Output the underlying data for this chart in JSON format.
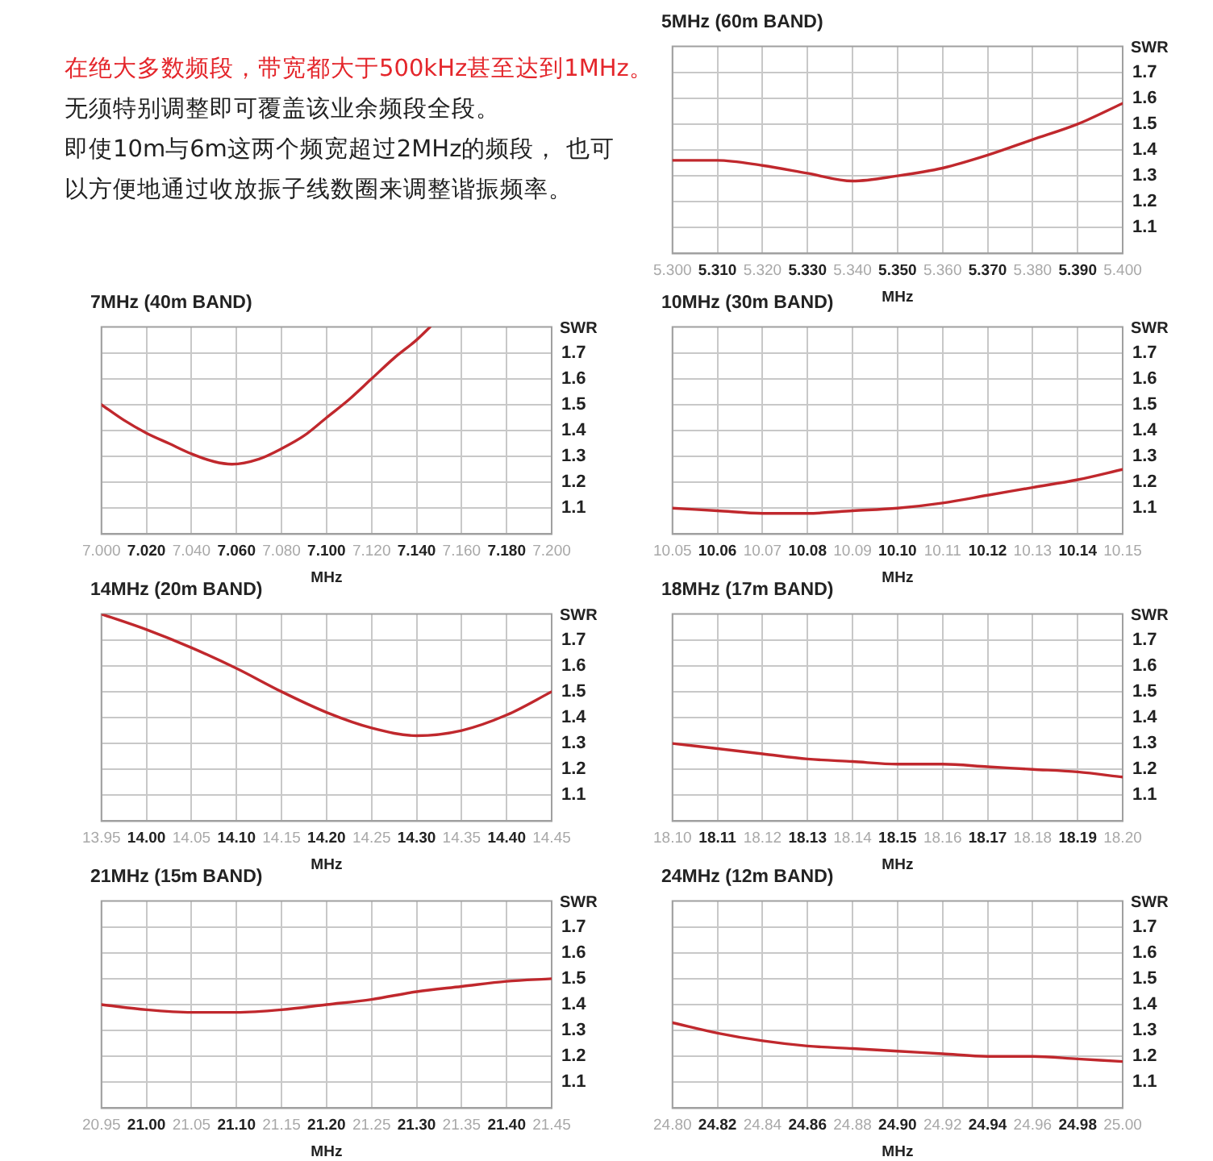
{
  "chart_data": [
    {
      "type": "other",
      "annotations": [
        "在绝大多数频段，带宽都大于500kHz甚至达到1MHz。",
        "无须特别调整即可覆盖该业余频段全段。",
        "即使10m与6m这两个频宽超过2MHz的频段， 也可以方便地通过收放振子线数圈来调整谐振频率。"
      ]
    },
    {
      "type": "line",
      "title": "5MHz (60m BAND)",
      "xlabel": "MHz",
      "ylabel": "SWR",
      "color": "#c0282d",
      "grid": true,
      "x": [
        5.3,
        5.31,
        5.32,
        5.33,
        5.34,
        5.35,
        5.36,
        5.37,
        5.38,
        5.39,
        5.4
      ],
      "values": [
        1.36,
        1.36,
        1.34,
        1.31,
        1.28,
        1.3,
        1.33,
        1.38,
        1.44,
        1.5,
        1.58
      ],
      "xlim": [
        5.3,
        5.4
      ],
      "xticks": [
        {
          "value": 5.3,
          "label": "5.300"
        },
        {
          "value": 5.31,
          "label": "5.310"
        },
        {
          "value": 5.32,
          "label": "5.320"
        },
        {
          "value": 5.33,
          "label": "5.330"
        },
        {
          "value": 5.34,
          "label": "5.340"
        },
        {
          "value": 5.35,
          "label": "5.350"
        },
        {
          "value": 5.36,
          "label": "5.360"
        },
        {
          "value": 5.37,
          "label": "5.370"
        },
        {
          "value": 5.38,
          "label": "5.380"
        },
        {
          "value": 5.39,
          "label": "5.390"
        },
        {
          "value": 5.4,
          "label": "5.400"
        }
      ],
      "ylim": [
        1.0,
        1.8
      ],
      "yticks": [
        1.1,
        1.2,
        1.3,
        1.4,
        1.5,
        1.6,
        1.7
      ]
    },
    {
      "type": "line",
      "title": "7MHz (40m BAND)",
      "xlabel": "MHz",
      "ylabel": "SWR",
      "color": "#c0282d",
      "grid": true,
      "x": [
        7.0,
        7.01,
        7.02,
        7.03,
        7.04,
        7.05,
        7.058,
        7.07,
        7.08,
        7.09,
        7.1,
        7.11,
        7.12,
        7.13,
        7.14,
        7.146
      ],
      "values": [
        1.5,
        1.44,
        1.39,
        1.35,
        1.31,
        1.28,
        1.27,
        1.29,
        1.33,
        1.38,
        1.45,
        1.52,
        1.6,
        1.68,
        1.75,
        1.8
      ],
      "xlim": [
        7.0,
        7.2
      ],
      "xticks": [
        {
          "value": 7.0,
          "label": "7.000"
        },
        {
          "value": 7.02,
          "label": "7.020"
        },
        {
          "value": 7.04,
          "label": "7.040"
        },
        {
          "value": 7.06,
          "label": "7.060"
        },
        {
          "value": 7.08,
          "label": "7.080"
        },
        {
          "value": 7.1,
          "label": "7.100"
        },
        {
          "value": 7.12,
          "label": "7.120"
        },
        {
          "value": 7.14,
          "label": "7.140"
        },
        {
          "value": 7.16,
          "label": "7.160"
        },
        {
          "value": 7.18,
          "label": "7.180"
        },
        {
          "value": 7.2,
          "label": "7.200"
        }
      ],
      "ylim": [
        1.0,
        1.8
      ],
      "yticks": [
        1.1,
        1.2,
        1.3,
        1.4,
        1.5,
        1.6,
        1.7
      ]
    },
    {
      "type": "line",
      "title": "10MHz (30m BAND)",
      "xlabel": "MHz",
      "ylabel": "SWR",
      "color": "#c0282d",
      "grid": true,
      "x": [
        10.05,
        10.06,
        10.07,
        10.08,
        10.09,
        10.1,
        10.11,
        10.12,
        10.13,
        10.14,
        10.15
      ],
      "values": [
        1.1,
        1.09,
        1.08,
        1.08,
        1.09,
        1.1,
        1.12,
        1.15,
        1.18,
        1.21,
        1.25
      ],
      "xlim": [
        10.05,
        10.15
      ],
      "xticks": [
        {
          "value": 10.05,
          "label": "10.05"
        },
        {
          "value": 10.06,
          "label": "10.06"
        },
        {
          "value": 10.07,
          "label": "10.07"
        },
        {
          "value": 10.08,
          "label": "10.08"
        },
        {
          "value": 10.09,
          "label": "10.09"
        },
        {
          "value": 10.1,
          "label": "10.10"
        },
        {
          "value": 10.11,
          "label": "10.11"
        },
        {
          "value": 10.12,
          "label": "10.12"
        },
        {
          "value": 10.13,
          "label": "10.13"
        },
        {
          "value": 10.14,
          "label": "10.14"
        },
        {
          "value": 10.15,
          "label": "10.15"
        }
      ],
      "ylim": [
        1.0,
        1.8
      ],
      "yticks": [
        1.1,
        1.2,
        1.3,
        1.4,
        1.5,
        1.6,
        1.7
      ]
    },
    {
      "type": "line",
      "title": "14MHz (20m BAND)",
      "xlabel": "MHz",
      "ylabel": "SWR",
      "color": "#c0282d",
      "grid": true,
      "x": [
        13.95,
        14.0,
        14.05,
        14.1,
        14.15,
        14.2,
        14.25,
        14.3,
        14.35,
        14.4,
        14.45
      ],
      "values": [
        1.8,
        1.74,
        1.67,
        1.59,
        1.5,
        1.42,
        1.36,
        1.33,
        1.35,
        1.41,
        1.5
      ],
      "xlim": [
        13.95,
        14.45
      ],
      "xticks": [
        {
          "value": 13.95,
          "label": "13.95"
        },
        {
          "value": 14.0,
          "label": "14.00"
        },
        {
          "value": 14.05,
          "label": "14.05"
        },
        {
          "value": 14.1,
          "label": "14.10"
        },
        {
          "value": 14.15,
          "label": "14.15"
        },
        {
          "value": 14.2,
          "label": "14.20"
        },
        {
          "value": 14.25,
          "label": "14.25"
        },
        {
          "value": 14.3,
          "label": "14.30"
        },
        {
          "value": 14.35,
          "label": "14.35"
        },
        {
          "value": 14.4,
          "label": "14.40"
        },
        {
          "value": 14.45,
          "label": "14.45"
        }
      ],
      "ylim": [
        1.0,
        1.8
      ],
      "yticks": [
        1.1,
        1.2,
        1.3,
        1.4,
        1.5,
        1.6,
        1.7
      ]
    },
    {
      "type": "line",
      "title": "18MHz (17m BAND)",
      "xlabel": "MHz",
      "ylabel": "SWR",
      "color": "#c0282d",
      "grid": true,
      "x": [
        18.1,
        18.11,
        18.12,
        18.13,
        18.14,
        18.15,
        18.16,
        18.17,
        18.18,
        18.19,
        18.2
      ],
      "values": [
        1.3,
        1.28,
        1.26,
        1.24,
        1.23,
        1.22,
        1.22,
        1.21,
        1.2,
        1.19,
        1.17
      ],
      "xlim": [
        18.1,
        18.2
      ],
      "xticks": [
        {
          "value": 18.1,
          "label": "18.10"
        },
        {
          "value": 18.11,
          "label": "18.11"
        },
        {
          "value": 18.12,
          "label": "18.12"
        },
        {
          "value": 18.13,
          "label": "18.13"
        },
        {
          "value": 18.14,
          "label": "18.14"
        },
        {
          "value": 18.15,
          "label": "18.15"
        },
        {
          "value": 18.16,
          "label": "18.16"
        },
        {
          "value": 18.17,
          "label": "18.17"
        },
        {
          "value": 18.18,
          "label": "18.18"
        },
        {
          "value": 18.19,
          "label": "18.19"
        },
        {
          "value": 18.2,
          "label": "18.20"
        }
      ],
      "ylim": [
        1.0,
        1.8
      ],
      "yticks": [
        1.1,
        1.2,
        1.3,
        1.4,
        1.5,
        1.6,
        1.7
      ]
    },
    {
      "type": "line",
      "title": "21MHz (15m BAND)",
      "xlabel": "MHz",
      "ylabel": "SWR",
      "color": "#c0282d",
      "grid": true,
      "x": [
        20.95,
        21.0,
        21.05,
        21.1,
        21.15,
        21.2,
        21.25,
        21.3,
        21.35,
        21.4,
        21.45
      ],
      "values": [
        1.4,
        1.38,
        1.37,
        1.37,
        1.38,
        1.4,
        1.42,
        1.45,
        1.47,
        1.49,
        1.5
      ],
      "xlim": [
        20.95,
        21.45
      ],
      "xticks": [
        {
          "value": 20.95,
          "label": "20.95"
        },
        {
          "value": 21.0,
          "label": "21.00"
        },
        {
          "value": 21.05,
          "label": "21.05"
        },
        {
          "value": 21.1,
          "label": "21.10"
        },
        {
          "value": 21.15,
          "label": "21.15"
        },
        {
          "value": 21.2,
          "label": "21.20"
        },
        {
          "value": 21.25,
          "label": "21.25"
        },
        {
          "value": 21.3,
          "label": "21.30"
        },
        {
          "value": 21.35,
          "label": "21.35"
        },
        {
          "value": 21.4,
          "label": "21.40"
        },
        {
          "value": 21.45,
          "label": "21.45"
        }
      ],
      "ylim": [
        1.0,
        1.8
      ],
      "yticks": [
        1.1,
        1.2,
        1.3,
        1.4,
        1.5,
        1.6,
        1.7
      ]
    },
    {
      "type": "line",
      "title": "24MHz (12m BAND)",
      "xlabel": "MHz",
      "ylabel": "SWR",
      "color": "#c0282d",
      "grid": true,
      "x": [
        24.8,
        24.82,
        24.84,
        24.86,
        24.88,
        24.9,
        24.92,
        24.94,
        24.96,
        24.98,
        25.0
      ],
      "values": [
        1.33,
        1.29,
        1.26,
        1.24,
        1.23,
        1.22,
        1.21,
        1.2,
        1.2,
        1.19,
        1.18
      ],
      "xlim": [
        24.8,
        25.0
      ],
      "xticks": [
        {
          "value": 24.8,
          "label": "24.80"
        },
        {
          "value": 24.82,
          "label": "24.82"
        },
        {
          "value": 24.84,
          "label": "24.84"
        },
        {
          "value": 24.86,
          "label": "24.86"
        },
        {
          "value": 24.88,
          "label": "24.88"
        },
        {
          "value": 24.9,
          "label": "24.90"
        },
        {
          "value": 24.92,
          "label": "24.92"
        },
        {
          "value": 24.94,
          "label": "24.94"
        },
        {
          "value": 24.96,
          "label": "24.96"
        },
        {
          "value": 24.98,
          "label": "24.98"
        },
        {
          "value": 25.0,
          "label": "25.00"
        }
      ],
      "ylim": [
        1.0,
        1.8
      ],
      "yticks": [
        1.1,
        1.2,
        1.3,
        1.4,
        1.5,
        1.6,
        1.7
      ]
    }
  ]
}
